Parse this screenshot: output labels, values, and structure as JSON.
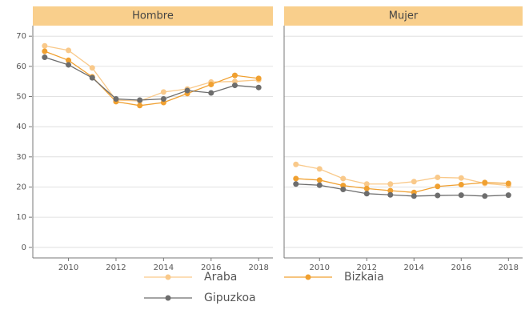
{
  "chart_data": {
    "type": "line",
    "x": [
      2009,
      2010,
      2011,
      2012,
      2013,
      2014,
      2015,
      2016,
      2017,
      2018
    ],
    "xlim": [
      2008.5,
      2018.6
    ],
    "xticks": [
      2010,
      2012,
      2014,
      2016,
      2018
    ],
    "ylim": [
      -3.5,
      73.5
    ],
    "yticks": [
      0,
      10,
      20,
      30,
      40,
      50,
      60,
      70
    ],
    "grid": true,
    "legend": "bottom",
    "series": [
      {
        "name": "Araba",
        "color": "#f9c98a"
      },
      {
        "name": "Bizkaia",
        "color": "#f0a030"
      },
      {
        "name": "Gipuzkoa",
        "color": "#6d6d6d"
      }
    ],
    "panels": [
      {
        "title": "Hombre",
        "series": [
          {
            "values": [
              66.8,
              65.3,
              59.5,
              48.8,
              48.5,
              51.5,
              52.5,
              54.8,
              55,
              55.5
            ]
          },
          {
            "values": [
              65,
              62,
              56.5,
              48.3,
              47,
              48,
              51,
              54,
              57,
              56
            ]
          },
          {
            "values": [
              63,
              60.5,
              56.2,
              49.2,
              48.8,
              49.2,
              52,
              51.2,
              53.7,
              53
            ]
          }
        ]
      },
      {
        "title": "Mujer",
        "series": [
          {
            "values": [
              27.5,
              26,
              22.8,
              21,
              21,
              21.8,
              23.2,
              23,
              21.2,
              20.5
            ]
          },
          {
            "values": [
              22.8,
              22.3,
              20.5,
              19.5,
              18.8,
              18.2,
              20.2,
              20.8,
              21.5,
              21.2
            ]
          },
          {
            "values": [
              21,
              20.6,
              19.2,
              17.8,
              17.4,
              17,
              17.2,
              17.3,
              17,
              17.3
            ]
          }
        ]
      }
    ]
  }
}
